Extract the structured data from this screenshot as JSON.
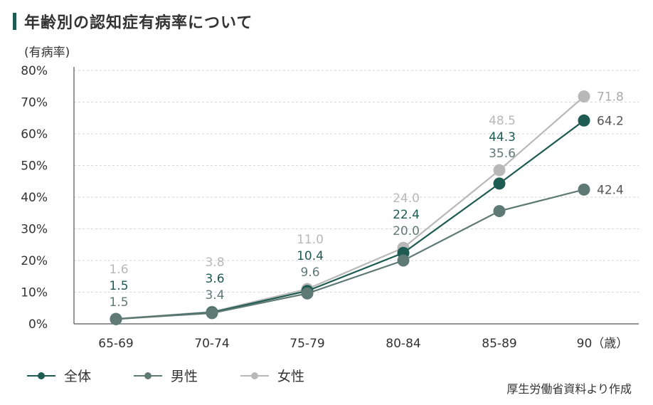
{
  "title": "年齢別の認知症有病率について",
  "source": "厚生労働省資料より作成",
  "chart_data": {
    "type": "line",
    "title": "年齢別の認知症有病率について",
    "ylabel": "(有病率)",
    "xlabel": "",
    "categories": [
      "65-69",
      "70-74",
      "75-79",
      "80-84",
      "85-89",
      "90（歳）"
    ],
    "yticks": [
      "0%",
      "10%",
      "20%",
      "30%",
      "40%",
      "50%",
      "60%",
      "70%",
      "80%"
    ],
    "ylim": [
      0,
      80
    ],
    "grid": true,
    "legend_position": "bottom-left",
    "series": [
      {
        "name": "女性",
        "color": "#b7b8b7",
        "values": [
          1.6,
          3.8,
          11.0,
          24.0,
          48.5,
          71.8
        ]
      },
      {
        "name": "全体",
        "color": "#1e5b52",
        "values": [
          1.5,
          3.6,
          10.4,
          22.4,
          44.3,
          64.2
        ]
      },
      {
        "name": "男性",
        "color": "#5f7a74",
        "values": [
          1.5,
          3.4,
          9.6,
          20.0,
          35.6,
          42.4
        ]
      }
    ],
    "labels": [
      [
        {
          "text": "1.6",
          "color": "#b7b8b7"
        },
        {
          "text": "1.5",
          "color": "#1e5b52"
        },
        {
          "text": "1.5",
          "color": "#5f7a74"
        }
      ],
      [
        {
          "text": "3.8",
          "color": "#b7b8b7"
        },
        {
          "text": "3.6",
          "color": "#1e5b52"
        },
        {
          "text": "3.4",
          "color": "#5f7a74"
        }
      ],
      [
        {
          "text": "11.0",
          "color": "#b7b8b7"
        },
        {
          "text": "10.4",
          "color": "#1e5b52"
        },
        {
          "text": "9.6",
          "color": "#5f7a74"
        }
      ],
      [
        {
          "text": "24.0",
          "color": "#b7b8b7"
        },
        {
          "text": "22.4",
          "color": "#1e5b52"
        },
        {
          "text": "20.0",
          "color": "#5f7a74"
        }
      ],
      [
        {
          "text": "48.5",
          "color": "#b7b8b7"
        },
        {
          "text": "44.3",
          "color": "#1e5b52"
        },
        {
          "text": "35.6",
          "color": "#5f7a74"
        }
      ],
      [
        {
          "text": "71.8",
          "color": "#b7b8b7"
        },
        {
          "text": "64.2",
          "color": "#1e5b52"
        },
        {
          "text": "42.4",
          "color": "#5f7a74"
        }
      ]
    ]
  },
  "legend": [
    {
      "label": "全体",
      "color": "#1e5b52"
    },
    {
      "label": "男性",
      "color": "#5f7a74"
    },
    {
      "label": "女性",
      "color": "#b7b8b7"
    }
  ]
}
